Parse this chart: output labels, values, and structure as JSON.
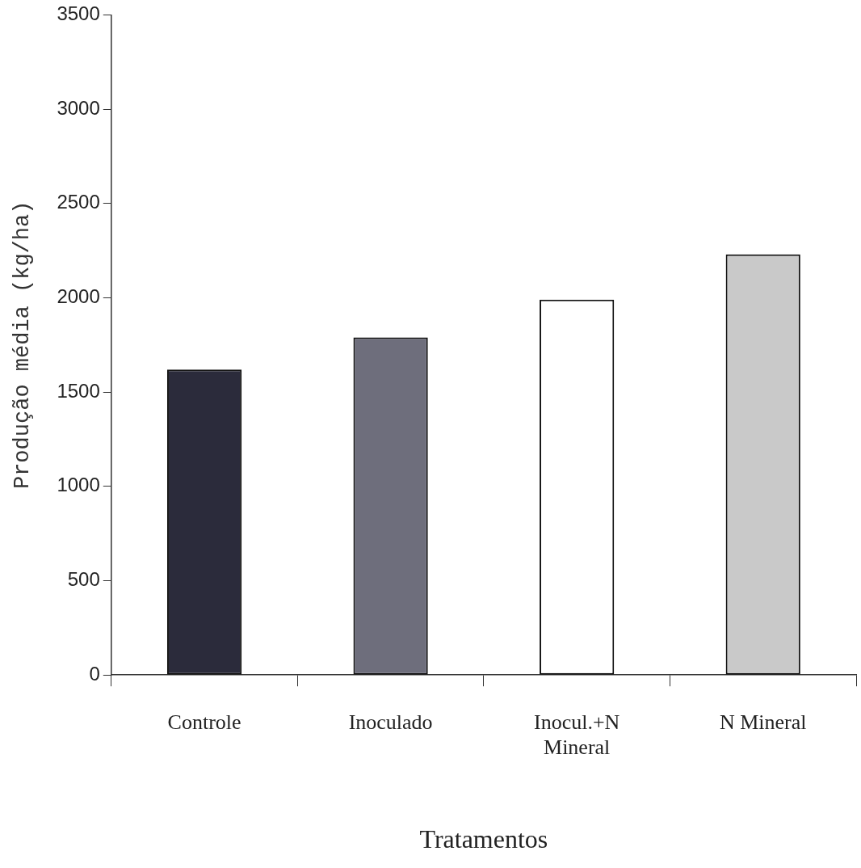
{
  "chart_data": {
    "type": "bar",
    "xlabel": "Tratamentos",
    "ylabel": "Produção média (kg/ha)",
    "categories": [
      "Controle",
      "Inoculado",
      "Inocul.+N Mineral",
      "N Mineral"
    ],
    "values": [
      1620,
      1790,
      1990,
      2230
    ],
    "colors": [
      "#2b2b3b",
      "#6e6e7c",
      "#ffffff",
      "#c9c9c9"
    ],
    "ylim": [
      0,
      3500
    ],
    "yticks": [
      0,
      500,
      1000,
      1500,
      2000,
      2500,
      3000,
      3500
    ],
    "grid": false,
    "legend": false
  }
}
